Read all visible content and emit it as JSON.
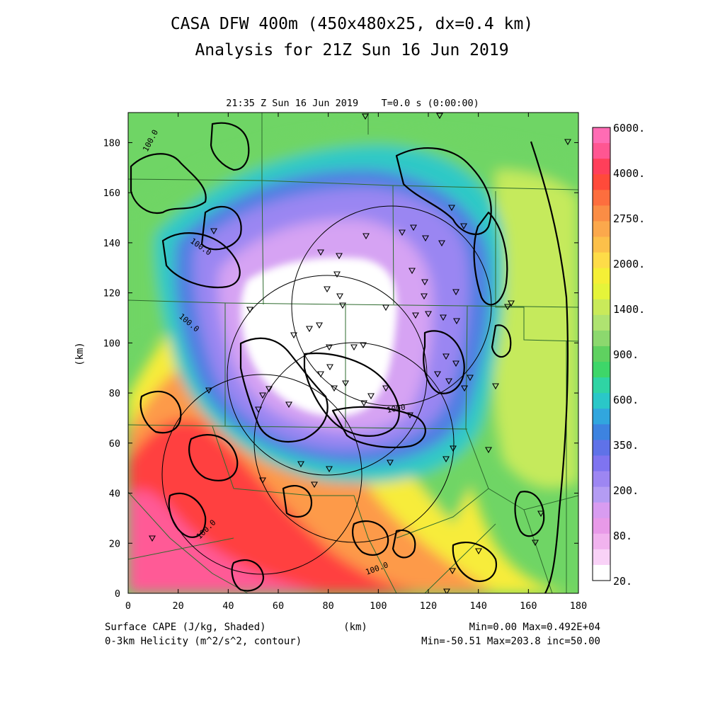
{
  "title": {
    "line1": "CASA DFW 400m (450x480x25, dx=0.4 km)",
    "line2": "Analysis for 21Z Sun 16 Jun 2019"
  },
  "subtitle": "21:35 Z Sun 16 Jun 2019    T=0.0 s (0:00:00)",
  "axes": {
    "x_label": "(km)",
    "y_label": "(km)",
    "x_range": [
      0,
      180
    ],
    "y_range": [
      0,
      192
    ],
    "x_ticks": [
      "0",
      "20",
      "40",
      "60",
      "80",
      "100",
      "120",
      "140",
      "160",
      "180"
    ],
    "y_ticks": [
      "0",
      "20",
      "40",
      "60",
      "80",
      "100",
      "120",
      "140",
      "160",
      "180"
    ]
  },
  "colorbar": {
    "labels": [
      "6000.",
      "4000.",
      "2750.",
      "2000.",
      "1400.",
      "900.",
      "600.",
      "350.",
      "200.",
      "80.",
      "20."
    ],
    "colors": [
      "#ff6cb4",
      "#ff5692",
      "#ff3f5a",
      "#ff4a3a",
      "#fd6e3e",
      "#fa8d45",
      "#fba84c",
      "#fcc04a",
      "#fedc48",
      "#f5ef36",
      "#e5f43a",
      "#c9ea5a",
      "#afe371",
      "#8cd86e",
      "#5fd160",
      "#3ed669",
      "#2fd4a4",
      "#2ac7c8",
      "#31a6de",
      "#3d83e0",
      "#5f72e8",
      "#7f74f0",
      "#9d86f2",
      "#b49cf3",
      "#d89cf0",
      "#e89ae8",
      "#f1b3ee",
      "#f9d2f7",
      "#ffffff"
    ]
  },
  "contour_labels": [
    "100.0",
    "100.0",
    "100.0",
    "1000",
    "100.0",
    "100.0"
  ],
  "footer": {
    "left1": "Surface CAPE (J/kg, Shaded)",
    "left2": "0-3km Helicity (m^2/s^2, contour)",
    "center": "(km)",
    "right1": "Min=0.00 Max=0.492E+04",
    "right2": "Min=-50.51 Max=203.8 inc=50.00"
  },
  "map_colors": {
    "low_pink": "#ff5a96",
    "red": "#ff4040",
    "orange": "#fd9a4a",
    "yellow": "#f7ec3a",
    "yellowgreen": "#c5ea5c",
    "green": "#6fd565",
    "cyan": "#2fc9c6",
    "blue": "#4f7fe2",
    "violet": "#9a86f2",
    "lavender": "#d6a3f3",
    "white": "#ffffff",
    "county_lines": "#2e6b2e",
    "contour": "#000000"
  }
}
